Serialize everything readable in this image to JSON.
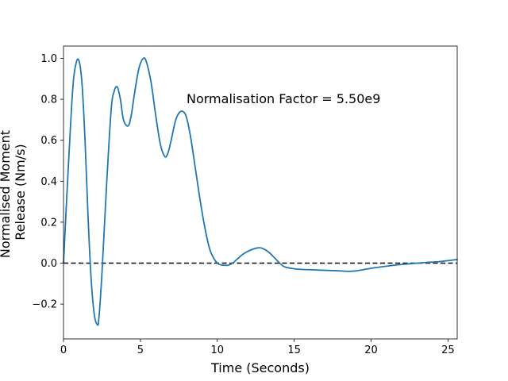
{
  "chart_data": {
    "type": "line",
    "title": "",
    "xlabel": "Time (Seconds)",
    "ylabel": "Normalised Moment Release (Nm/s)",
    "ylabel_lines": [
      "Normalised Moment",
      "Release (Nm/s)"
    ],
    "xlim": [
      0,
      25.6
    ],
    "ylim": [
      -0.37,
      1.06
    ],
    "xticks": [
      0,
      5,
      10,
      15,
      20,
      25
    ],
    "yticks": [
      -0.2,
      0.0,
      0.2,
      0.4,
      0.6,
      0.8,
      1.0
    ],
    "ytick_labels": [
      "−0.2",
      "0.0",
      "0.2",
      "0.4",
      "0.6",
      "0.8",
      "1.0"
    ],
    "grid": false,
    "annotation": {
      "text": "Normalisation Factor = 5.50e9",
      "x": 8.0,
      "y": 0.8
    },
    "reference_line": {
      "y": 0,
      "style": "dashed",
      "color": "#000000"
    },
    "series": [
      {
        "color": "#1f77b4",
        "x": [
          0,
          0.3,
          0.6,
          0.8,
          1.0,
          1.2,
          1.4,
          1.6,
          1.8,
          2.0,
          2.2,
          2.3,
          2.5,
          2.8,
          3.1,
          3.3,
          3.5,
          3.7,
          3.9,
          4.2,
          4.4,
          4.6,
          4.9,
          5.2,
          5.4,
          5.7,
          6.0,
          6.3,
          6.6,
          6.8,
          7.0,
          7.3,
          7.6,
          7.9,
          8.1,
          8.3,
          8.6,
          8.9,
          9.2,
          9.5,
          9.8,
          10.1,
          10.4,
          10.7,
          11.0,
          11.3,
          11.7,
          12.2,
          12.7,
          13.0,
          13.4,
          13.8,
          14.3,
          14.8,
          15.3,
          16.0,
          17.0,
          18.0,
          18.5,
          19.0,
          19.5,
          20.0,
          20.7,
          21.5,
          22.5,
          23.5,
          24.5,
          25.6
        ],
        "y": [
          0.0,
          0.45,
          0.85,
          0.97,
          0.99,
          0.88,
          0.6,
          0.22,
          -0.08,
          -0.25,
          -0.3,
          -0.27,
          -0.05,
          0.38,
          0.75,
          0.84,
          0.86,
          0.8,
          0.7,
          0.67,
          0.72,
          0.82,
          0.95,
          1.0,
          0.98,
          0.88,
          0.72,
          0.58,
          0.52,
          0.54,
          0.6,
          0.7,
          0.74,
          0.73,
          0.68,
          0.6,
          0.45,
          0.3,
          0.17,
          0.07,
          0.02,
          -0.005,
          -0.01,
          -0.01,
          0.0,
          0.02,
          0.045,
          0.065,
          0.075,
          0.07,
          0.05,
          0.02,
          -0.015,
          -0.025,
          -0.03,
          -0.032,
          -0.035,
          -0.038,
          -0.04,
          -0.038,
          -0.032,
          -0.025,
          -0.018,
          -0.01,
          -0.003,
          0.003,
          0.008,
          0.018
        ]
      }
    ]
  }
}
